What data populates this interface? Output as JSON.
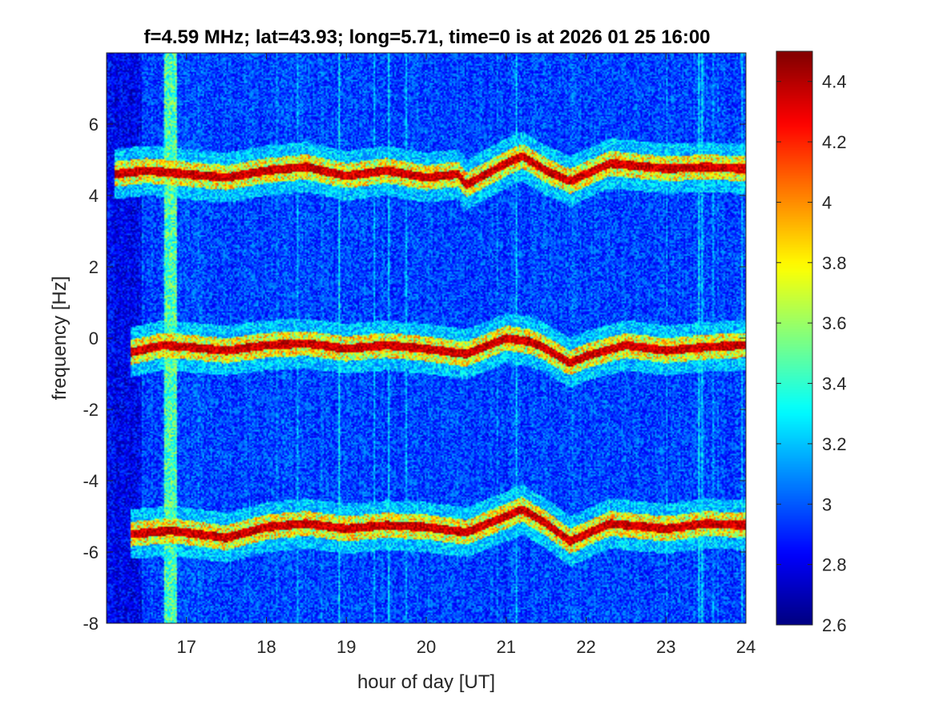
{
  "chart_data": {
    "type": "heatmap",
    "title": "f=4.59 MHz;  lat=43.93; long=5.71, time=0 is at 2026 01 25 16:00",
    "xlabel": "hour of day [UT]",
    "ylabel": "frequency [Hz]",
    "xlim": [
      16.0,
      24.0
    ],
    "ylim": [
      -8,
      8
    ],
    "xticks": [
      "17",
      "18",
      "19",
      "20",
      "21",
      "22",
      "23",
      "24"
    ],
    "yticks": [
      "-8",
      "-6",
      "-4",
      "-2",
      "0",
      "2",
      "4",
      "6"
    ],
    "colorbar": {
      "min": 2.6,
      "max": 4.5,
      "ticks": [
        "2.6",
        "2.8",
        "3",
        "3.2",
        "3.4",
        "3.6",
        "3.8",
        "4",
        "4.2",
        "4.4"
      ],
      "colormap": "jet"
    },
    "background_level": 2.85,
    "vertical_band": {
      "x": 16.8,
      "level": 3.4
    },
    "traces": [
      {
        "x": [
          16.1,
          16.5,
          17.0,
          17.5,
          18.0,
          18.5,
          19.0,
          19.5,
          20.0,
          20.4,
          20.5,
          21.0,
          21.2,
          21.5,
          21.8,
          22.0,
          22.3,
          23.0,
          23.5,
          24.0
        ],
        "y": [
          4.6,
          4.7,
          4.6,
          4.5,
          4.7,
          4.8,
          4.55,
          4.7,
          4.5,
          4.6,
          4.3,
          4.9,
          5.1,
          4.7,
          4.4,
          4.6,
          4.9,
          4.75,
          4.8,
          4.75
        ],
        "peak": 4.5
      },
      {
        "x": [
          16.3,
          16.7,
          17.0,
          17.5,
          18.0,
          18.5,
          19.0,
          19.5,
          20.0,
          20.5,
          21.0,
          21.3,
          21.5,
          21.8,
          22.0,
          22.5,
          23.0,
          23.5,
          24.0
        ],
        "y": [
          -0.4,
          -0.2,
          -0.25,
          -0.35,
          -0.2,
          -0.15,
          -0.3,
          -0.2,
          -0.3,
          -0.45,
          0.0,
          -0.1,
          -0.3,
          -0.7,
          -0.5,
          -0.2,
          -0.35,
          -0.25,
          -0.2
        ],
        "peak": 4.5
      },
      {
        "x": [
          16.3,
          16.8,
          17.5,
          18.0,
          18.5,
          19.0,
          19.5,
          20.0,
          20.5,
          21.0,
          21.2,
          21.5,
          21.8,
          22.0,
          22.3,
          23.0,
          23.5,
          24.0
        ],
        "y": [
          -5.5,
          -5.4,
          -5.6,
          -5.3,
          -5.2,
          -5.35,
          -5.25,
          -5.3,
          -5.45,
          -5.0,
          -4.8,
          -5.2,
          -5.7,
          -5.5,
          -5.2,
          -5.35,
          -5.2,
          -5.25
        ],
        "peak": 4.5
      }
    ]
  }
}
